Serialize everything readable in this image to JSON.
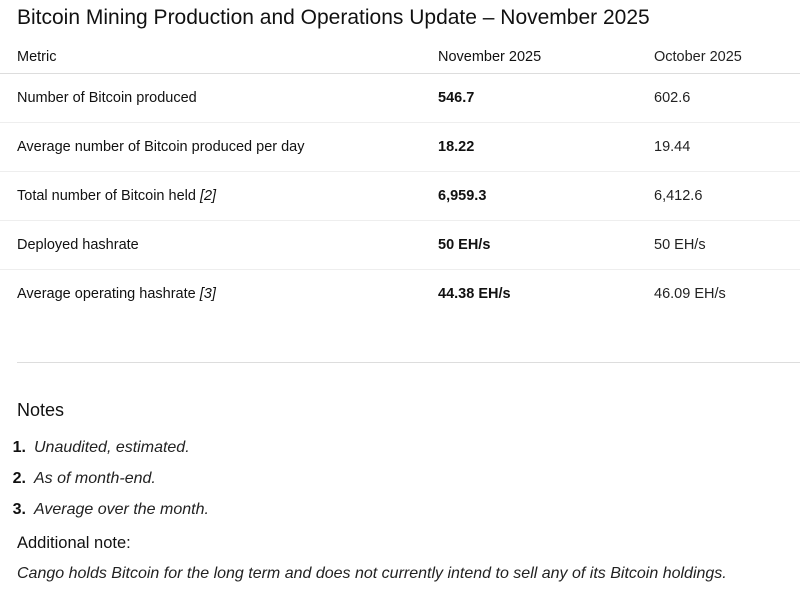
{
  "title": "Bitcoin Mining Production and Operations Update – November 2025",
  "table": {
    "headers": [
      "Metric",
      "November 2025",
      "October 2025"
    ],
    "rows": [
      {
        "metric": "Number of Bitcoin produced",
        "footnote": "",
        "nov": "546.7",
        "oct": "602.6"
      },
      {
        "metric": "Average number of Bitcoin produced per day",
        "footnote": "",
        "nov": "18.22",
        "oct": "19.44"
      },
      {
        "metric": "Total number of Bitcoin held",
        "footnote": "[2]",
        "nov": "6,959.3",
        "oct": "6,412.6"
      },
      {
        "metric": "Deployed hashrate",
        "footnote": "",
        "nov": "50 EH/s",
        "oct": "50 EH/s"
      },
      {
        "metric": "Average operating hashrate",
        "footnote": "[3]",
        "nov": "44.38 EH/s",
        "oct": "46.09 EH/s"
      }
    ]
  },
  "notes": {
    "heading": "Notes",
    "items": [
      {
        "num": "1.",
        "text": "Unaudited, estimated."
      },
      {
        "num": "2.",
        "text": "As of month-end."
      },
      {
        "num": "3.",
        "text": "Average over the month."
      }
    ]
  },
  "additional": {
    "heading": "Additional note:",
    "text": "Cango holds Bitcoin for the long term and does not currently intend to sell any of its Bitcoin holdings."
  }
}
